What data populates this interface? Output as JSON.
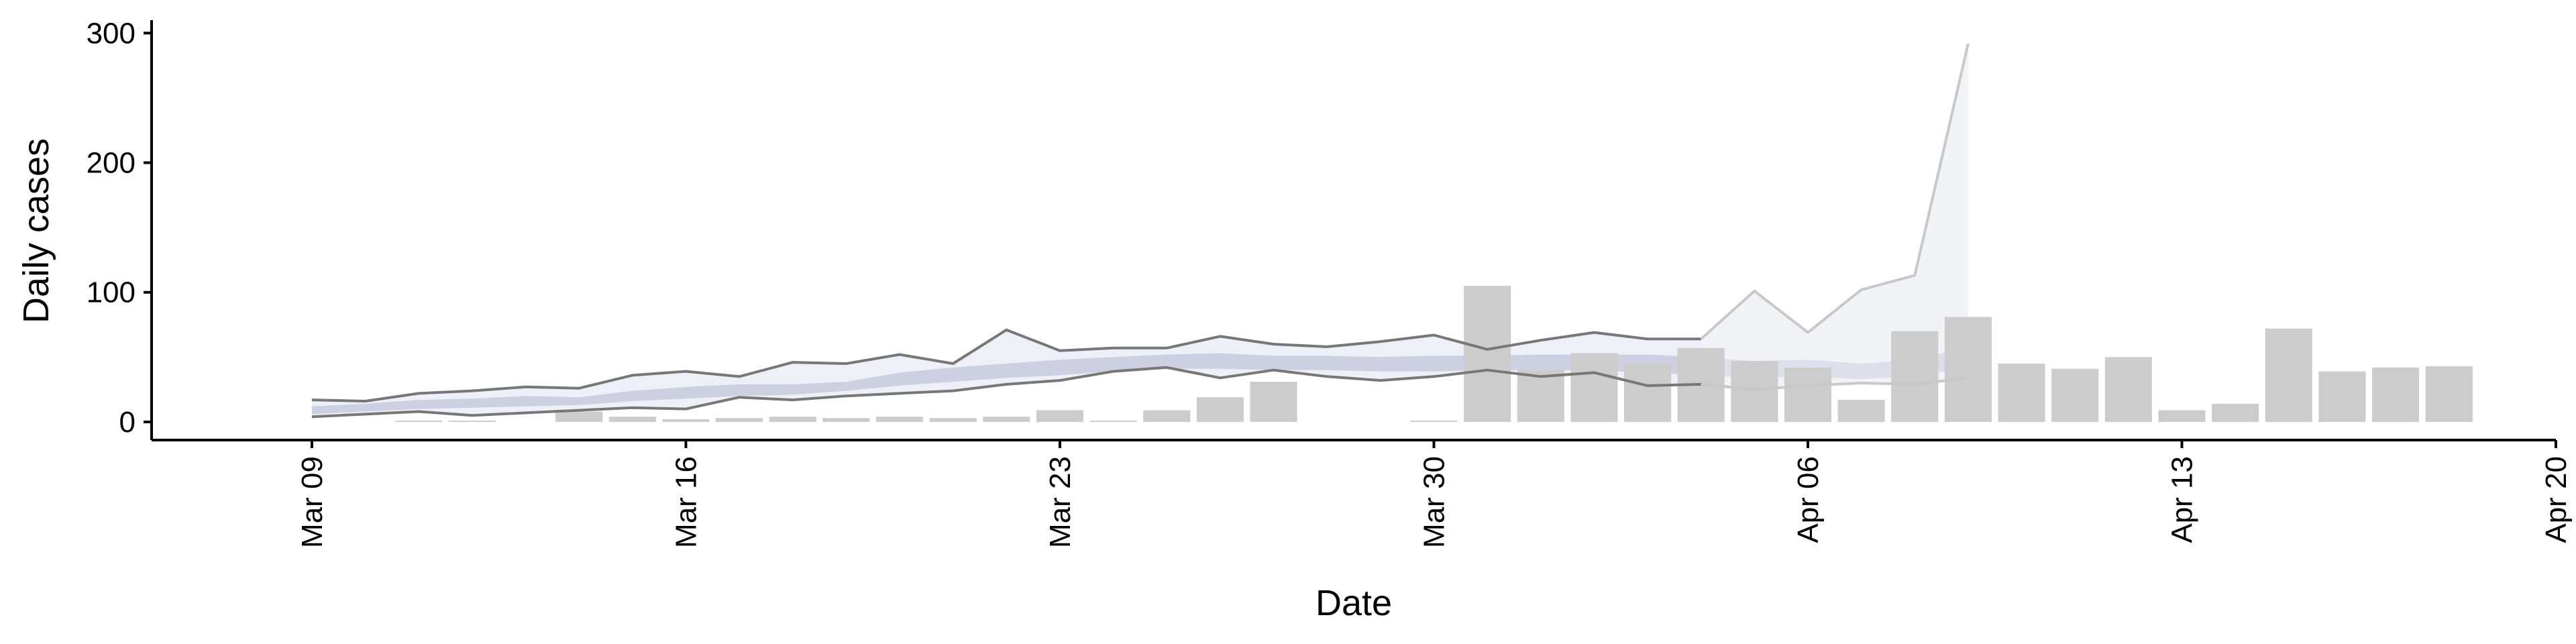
{
  "chart_data": {
    "type": "bar",
    "title": "",
    "xlabel": "Date",
    "ylabel": "Daily cases",
    "ylim": [
      -14,
      310
    ],
    "xlim": [
      "2020-03-06",
      "2020-04-20"
    ],
    "grid": false,
    "legend": "none",
    "y_ticks": [
      0,
      100,
      200,
      300
    ],
    "x_ticks": [
      {
        "date": "2020-03-09",
        "label": "Mar 09"
      },
      {
        "date": "2020-03-16",
        "label": "Mar 16"
      },
      {
        "date": "2020-03-23",
        "label": "Mar 23"
      },
      {
        "date": "2020-03-30",
        "label": "Mar 30"
      },
      {
        "date": "2020-04-06",
        "label": "Apr 06"
      },
      {
        "date": "2020-04-13",
        "label": "Apr 13"
      },
      {
        "date": "2020-04-20",
        "label": "Apr 20"
      }
    ],
    "colors": {
      "bars": "#cccccc",
      "band_outer": "#dfe3ee",
      "band_inner": "#c5cadc",
      "bound_lines": "#777777",
      "bound_lines_forecast": "#c8c8c8",
      "forecast_band": "#eef0f5"
    },
    "bars": [
      {
        "date": "2020-03-11",
        "value": 1
      },
      {
        "date": "2020-03-12",
        "value": 1
      },
      {
        "date": "2020-03-14",
        "value": 8
      },
      {
        "date": "2020-03-15",
        "value": 4
      },
      {
        "date": "2020-03-16",
        "value": 2
      },
      {
        "date": "2020-03-17",
        "value": 3
      },
      {
        "date": "2020-03-18",
        "value": 4
      },
      {
        "date": "2020-03-19",
        "value": 3
      },
      {
        "date": "2020-03-20",
        "value": 4
      },
      {
        "date": "2020-03-21",
        "value": 3
      },
      {
        "date": "2020-03-22",
        "value": 4
      },
      {
        "date": "2020-03-23",
        "value": 9
      },
      {
        "date": "2020-03-24",
        "value": 1
      },
      {
        "date": "2020-03-25",
        "value": 9
      },
      {
        "date": "2020-03-26",
        "value": 19
      },
      {
        "date": "2020-03-27",
        "value": 31
      },
      {
        "date": "2020-03-30",
        "value": 1
      },
      {
        "date": "2020-03-31",
        "value": 105
      },
      {
        "date": "2020-04-01",
        "value": 40
      },
      {
        "date": "2020-04-02",
        "value": 53
      },
      {
        "date": "2020-04-03",
        "value": 45
      },
      {
        "date": "2020-04-04",
        "value": 57
      },
      {
        "date": "2020-04-05",
        "value": 47
      },
      {
        "date": "2020-04-06",
        "value": 42
      },
      {
        "date": "2020-04-07",
        "value": 17
      },
      {
        "date": "2020-04-08",
        "value": 70
      },
      {
        "date": "2020-04-09",
        "value": 81
      },
      {
        "date": "2020-04-10",
        "value": 45
      },
      {
        "date": "2020-04-11",
        "value": 41
      },
      {
        "date": "2020-04-12",
        "value": 50
      },
      {
        "date": "2020-04-13",
        "value": 9
      },
      {
        "date": "2020-04-14",
        "value": 14
      },
      {
        "date": "2020-04-15",
        "value": 72
      },
      {
        "date": "2020-04-16",
        "value": 39
      },
      {
        "date": "2020-04-17",
        "value": 42
      },
      {
        "date": "2020-04-18",
        "value": 43
      }
    ],
    "estimate": {
      "dates": [
        "2020-03-09",
        "2020-03-10",
        "2020-03-11",
        "2020-03-12",
        "2020-03-13",
        "2020-03-14",
        "2020-03-15",
        "2020-03-16",
        "2020-03-17",
        "2020-03-18",
        "2020-03-19",
        "2020-03-20",
        "2020-03-21",
        "2020-03-22",
        "2020-03-23",
        "2020-03-24",
        "2020-03-25",
        "2020-03-26",
        "2020-03-27",
        "2020-03-28",
        "2020-03-29",
        "2020-03-30",
        "2020-03-31",
        "2020-04-01",
        "2020-04-02",
        "2020-04-03",
        "2020-04-04",
        "2020-04-05",
        "2020-04-06",
        "2020-04-07",
        "2020-04-08",
        "2020-04-09"
      ],
      "upper_90": [
        17,
        16,
        22,
        24,
        27,
        26,
        36,
        39,
        35,
        46,
        45,
        52,
        45,
        71,
        55,
        57,
        57,
        66,
        60,
        58,
        62,
        67,
        56,
        63,
        69,
        64,
        64,
        101,
        69,
        102,
        113,
        292
      ],
      "lower_90": [
        4,
        6,
        8,
        5,
        7,
        9,
        11,
        10,
        19,
        17,
        20,
        22,
        24,
        29,
        32,
        39,
        42,
        34,
        40,
        35,
        32,
        35,
        40,
        35,
        38,
        28,
        29,
        25,
        28,
        30,
        29,
        34
      ],
      "upper_50": [
        12,
        14,
        17,
        18,
        20,
        19,
        24,
        27,
        29,
        29,
        31,
        38,
        42,
        45,
        48,
        50,
        52,
        53,
        51,
        51,
        50,
        51,
        51,
        52,
        52,
        52,
        50,
        47,
        48,
        45,
        48,
        58
      ],
      "lower_50": [
        6,
        8,
        10,
        11,
        12,
        13,
        16,
        18,
        20,
        21,
        24,
        28,
        31,
        34,
        36,
        39,
        41,
        41,
        40,
        40,
        39,
        39,
        40,
        40,
        40,
        38,
        36,
        34,
        35,
        33,
        35,
        42
      ],
      "forecast_start": "2020-04-04"
    }
  }
}
